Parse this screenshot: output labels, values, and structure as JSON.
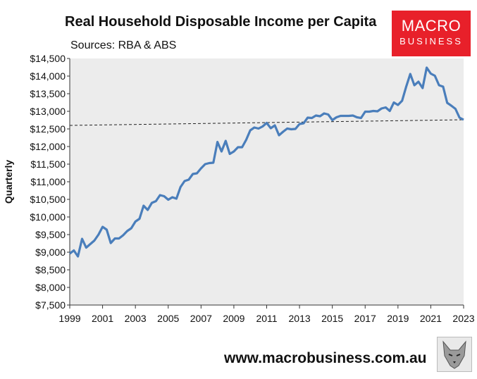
{
  "header": {
    "title": "Real Household Disposable Income per Capita",
    "subtitle": "Sources: RBA & ABS"
  },
  "logo": {
    "line1": "MACRO",
    "line2": "BUSINESS",
    "color": "#e8202a"
  },
  "footer": {
    "url": "www.macrobusiness.com.au"
  },
  "icons": {
    "wolf": "wolf-logo-icon"
  },
  "chart_data": {
    "type": "line",
    "ylabel": "Quarterly",
    "xlabel": "",
    "xlim": [
      1999,
      2023
    ],
    "ylim": [
      7500,
      14500
    ],
    "ytick_step": 500,
    "yticks": [
      "$7,500",
      "$8,000",
      "$8,500",
      "$9,000",
      "$9,500",
      "$10,000",
      "$10,500",
      "$11,000",
      "$11,500",
      "$12,000",
      "$12,500",
      "$13,000",
      "$13,500",
      "$14,000",
      "$14,500"
    ],
    "xticks": [
      "1999",
      "2001",
      "2003",
      "2005",
      "2007",
      "2009",
      "2011",
      "2013",
      "2015",
      "2017",
      "2019",
      "2021",
      "2023"
    ],
    "plot_background": "#ececec",
    "series_color": "#4a7ebb",
    "series": [
      {
        "x": [
          1999.0,
          1999.25,
          1999.5,
          1999.75,
          2000.0,
          2000.25,
          2000.5,
          2000.75,
          2001.0,
          2001.25,
          2001.5,
          2001.75,
          2002.0,
          2002.25,
          2002.5,
          2002.75,
          2003.0,
          2003.25,
          2003.5,
          2003.75,
          2004.0,
          2004.25,
          2004.5,
          2004.75,
          2005.0,
          2005.25,
          2005.5,
          2005.75,
          2006.0,
          2006.25,
          2006.5,
          2006.75,
          2007.0,
          2007.25,
          2007.5,
          2007.75,
          2008.0,
          2008.25,
          2008.5,
          2008.75,
          2009.0,
          2009.25,
          2009.5,
          2009.75,
          2010.0,
          2010.25,
          2010.5,
          2010.75,
          2011.0,
          2011.25,
          2011.5,
          2011.75,
          2012.0,
          2012.25,
          2012.5,
          2012.75,
          2013.0,
          2013.25,
          2013.5,
          2013.75,
          2014.0,
          2014.25,
          2014.5,
          2014.75,
          2015.0,
          2015.25,
          2015.5,
          2015.75,
          2016.0,
          2016.25,
          2016.5,
          2016.75,
          2017.0,
          2017.25,
          2017.5,
          2017.75,
          2018.0,
          2018.25,
          2018.5,
          2018.75,
          2019.0,
          2019.25,
          2019.5,
          2019.75,
          2020.0,
          2020.25,
          2020.5,
          2020.75,
          2021.0,
          2021.25,
          2021.5,
          2021.75,
          2022.0,
          2022.25,
          2022.5,
          2022.75,
          2023.0
        ],
        "values": [
          8960,
          9050,
          8880,
          9380,
          9130,
          9230,
          9330,
          9500,
          9720,
          9640,
          9260,
          9390,
          9390,
          9480,
          9600,
          9680,
          9870,
          9950,
          10320,
          10200,
          10400,
          10450,
          10620,
          10590,
          10490,
          10560,
          10520,
          10850,
          11020,
          11060,
          11220,
          11240,
          11380,
          11500,
          11530,
          11540,
          12130,
          11860,
          12160,
          11790,
          11860,
          11980,
          11980,
          12190,
          12460,
          12540,
          12510,
          12570,
          12670,
          12520,
          12600,
          12320,
          12420,
          12510,
          12490,
          12500,
          12640,
          12660,
          12820,
          12810,
          12880,
          12860,
          12940,
          12910,
          12750,
          12830,
          12870,
          12870,
          12870,
          12880,
          12830,
          12810,
          12990,
          12990,
          13010,
          13000,
          13080,
          13110,
          13010,
          13250,
          13180,
          13300,
          13700,
          14060,
          13740,
          13840,
          13660,
          14240,
          14070,
          14010,
          13740,
          13700,
          13240,
          13160,
          13070,
          12820,
          12760
        ]
      },
      {
        "x": [
          1999,
          2023
        ],
        "values": [
          12600,
          12760
        ]
      }
    ]
  }
}
